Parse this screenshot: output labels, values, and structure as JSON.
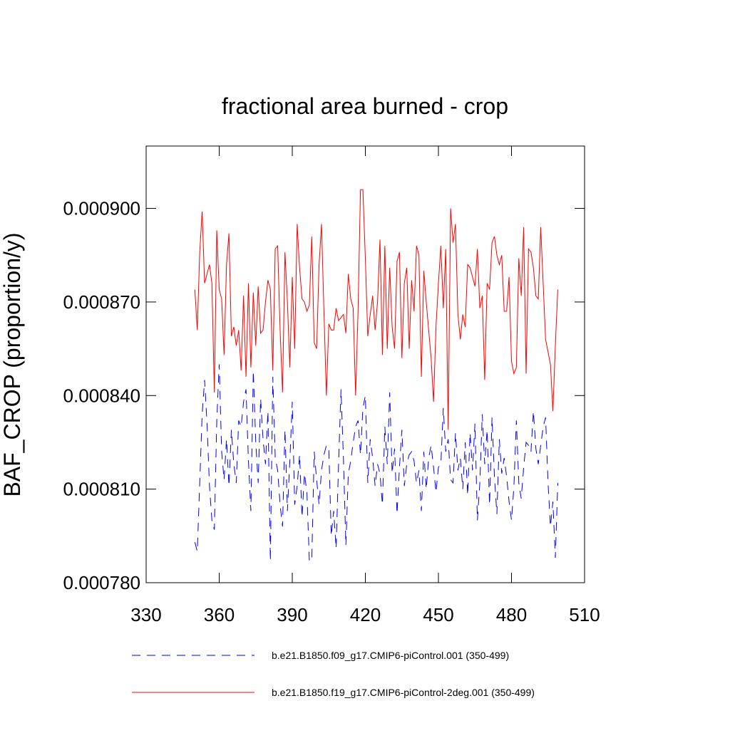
{
  "chart_data": {
    "type": "line",
    "title": "fractional area burned - crop",
    "y_label": "BAF_CROP  (proportion/y)",
    "xlim": [
      330,
      510
    ],
    "xticks": [
      330,
      360,
      390,
      420,
      450,
      480,
      510
    ],
    "ylim": [
      0.00078,
      0.00092
    ],
    "yticks": [
      {
        "value": 0.00078,
        "label": "0.000780"
      },
      {
        "value": 0.00081,
        "label": "0.000810"
      },
      {
        "value": 0.00084,
        "label": "0.000840"
      },
      {
        "value": 0.00087,
        "label": "0.000870"
      },
      {
        "value": 0.0009,
        "label": "0.000900"
      }
    ],
    "x": [
      350,
      351,
      352,
      353,
      354,
      355,
      356,
      357,
      358,
      359,
      360,
      361,
      362,
      363,
      364,
      365,
      366,
      367,
      368,
      369,
      370,
      371,
      372,
      373,
      374,
      375,
      376,
      377,
      378,
      379,
      380,
      381,
      382,
      383,
      384,
      385,
      386,
      387,
      388,
      389,
      390,
      391,
      392,
      393,
      394,
      395,
      396,
      397,
      398,
      399,
      400,
      401,
      402,
      403,
      404,
      405,
      406,
      407,
      408,
      409,
      410,
      411,
      412,
      413,
      414,
      415,
      416,
      417,
      418,
      419,
      420,
      421,
      422,
      423,
      424,
      425,
      426,
      427,
      428,
      429,
      430,
      431,
      432,
      433,
      434,
      435,
      436,
      437,
      438,
      439,
      440,
      441,
      442,
      443,
      444,
      445,
      446,
      447,
      448,
      449,
      450,
      451,
      452,
      453,
      454,
      455,
      456,
      457,
      458,
      459,
      460,
      461,
      462,
      463,
      464,
      465,
      466,
      467,
      468,
      469,
      470,
      471,
      472,
      473,
      474,
      475,
      476,
      477,
      478,
      479,
      480,
      481,
      482,
      483,
      484,
      485,
      486,
      487,
      488,
      489,
      490,
      491,
      492,
      493,
      494,
      495,
      496,
      497,
      498,
      499
    ],
    "series": [
      {
        "name": "b.e21.B1850.f09_g17.CMIP6-piControl.001 (350-499)",
        "color": "#0000ff",
        "dashed": true,
        "values": [
          0.000793,
          0.00079,
          0.000812,
          0.000834,
          0.000845,
          0.000831,
          0.000811,
          0.0008,
          0.000797,
          0.000832,
          0.00085,
          0.000822,
          0.000813,
          0.000826,
          0.000811,
          0.000829,
          0.000818,
          0.000812,
          0.000832,
          0.00083,
          0.000838,
          0.000842,
          0.000819,
          0.000803,
          0.000848,
          0.000825,
          0.000812,
          0.000839,
          0.000826,
          0.000818,
          0.000835,
          0.000787,
          0.000846,
          0.00082,
          0.000816,
          0.000805,
          0.000798,
          0.000829,
          0.000803,
          0.000819,
          0.000838,
          0.000805,
          0.000811,
          0.000821,
          0.000801,
          0.000815,
          0.000809,
          0.000787,
          0.000787,
          0.000822,
          0.000813,
          0.000805,
          0.000816,
          0.000821,
          0.000824,
          0.000823,
          0.000795,
          0.000803,
          0.000791,
          0.000818,
          0.000842,
          0.00082,
          0.000792,
          0.000815,
          0.000819,
          0.000825,
          0.00083,
          0.000832,
          0.000821,
          0.000836,
          0.00084,
          0.000812,
          0.000826,
          0.00082,
          0.000811,
          0.000818,
          0.000815,
          0.000805,
          0.00083,
          0.000818,
          0.000841,
          0.000815,
          0.000823,
          0.000802,
          0.000817,
          0.000829,
          0.000811,
          0.000818,
          0.000821,
          0.000822,
          0.000819,
          0.000812,
          0.000816,
          0.000803,
          0.000822,
          0.00081,
          0.00082,
          0.000824,
          0.000817,
          0.000809,
          0.000817,
          0.000818,
          0.000836,
          0.000822,
          0.000826,
          0.000813,
          0.000812,
          0.000828,
          0.000816,
          0.00082,
          0.00081,
          0.000825,
          0.000808,
          0.000828,
          0.000816,
          0.000831,
          0.0008,
          0.000812,
          0.000834,
          0.000818,
          0.000829,
          0.000805,
          0.000833,
          0.000814,
          0.000802,
          0.000826,
          0.000815,
          0.00082,
          0.000814,
          0.000806,
          0.0008,
          0.000811,
          0.000832,
          0.000812,
          0.000807,
          0.000817,
          0.000825,
          0.000824,
          0.000822,
          0.000835,
          0.000823,
          0.000818,
          0.000824,
          0.00083,
          0.000833,
          0.000812,
          0.000798,
          0.000806,
          0.000788,
          0.000812
        ]
      },
      {
        "name": "b.e21.B1850.f19_g17.CMIP6-piControl-2deg.001 (350-499)",
        "color": "#ff0000",
        "dashed": false,
        "values": [
          0.000874,
          0.000861,
          0.000886,
          0.000899,
          0.000876,
          0.000879,
          0.000882,
          0.000876,
          0.000841,
          0.000893,
          0.000874,
          0.000871,
          0.000853,
          0.000882,
          0.000892,
          0.000859,
          0.000862,
          0.000856,
          0.000861,
          0.000848,
          0.000872,
          0.000846,
          0.000876,
          0.000849,
          0.000873,
          0.000856,
          0.000875,
          0.00086,
          0.000861,
          0.00087,
          0.000877,
          0.000874,
          0.000848,
          0.000887,
          0.000888,
          0.000861,
          0.000841,
          0.000886,
          0.00087,
          0.000849,
          0.000878,
          0.000855,
          0.000895,
          0.000881,
          0.000871,
          0.00087,
          0.000867,
          0.000869,
          0.000891,
          0.000857,
          0.000855,
          0.000882,
          0.000895,
          0.000867,
          0.00084,
          0.000863,
          0.000861,
          0.000861,
          0.000868,
          0.000864,
          0.000865,
          0.000866,
          0.00086,
          0.000879,
          0.000871,
          0.000868,
          0.00084,
          0.000867,
          0.000906,
          0.000906,
          0.000884,
          0.000859,
          0.000866,
          0.000872,
          0.000861,
          0.00087,
          0.00089,
          0.000853,
          0.000888,
          0.000855,
          0.000881,
          0.000862,
          0.000855,
          0.000883,
          0.000886,
          0.000852,
          0.000876,
          0.000881,
          0.000855,
          0.000877,
          0.000867,
          0.000888,
          0.000885,
          0.000846,
          0.00088,
          0.00087,
          0.000861,
          0.000852,
          0.000838,
          0.000862,
          0.000876,
          0.000888,
          0.000868,
          0.000887,
          0.000829,
          0.0009,
          0.000889,
          0.000895,
          0.000866,
          0.000858,
          0.000866,
          0.000862,
          0.000882,
          0.000881,
          0.000878,
          0.000875,
          0.000887,
          0.000868,
          0.000872,
          0.000845,
          0.000876,
          0.000874,
          0.000889,
          0.000891,
          0.000885,
          0.000882,
          0.000885,
          0.000867,
          0.000867,
          0.000878,
          0.000851,
          0.000847,
          0.000849,
          0.000884,
          0.000872,
          0.000894,
          0.000847,
          0.000887,
          0.000886,
          0.000881,
          0.000872,
          0.000871,
          0.000894,
          0.000876,
          0.000858,
          0.000854,
          0.00085,
          0.000835,
          0.000856,
          0.000874
        ]
      }
    ]
  }
}
